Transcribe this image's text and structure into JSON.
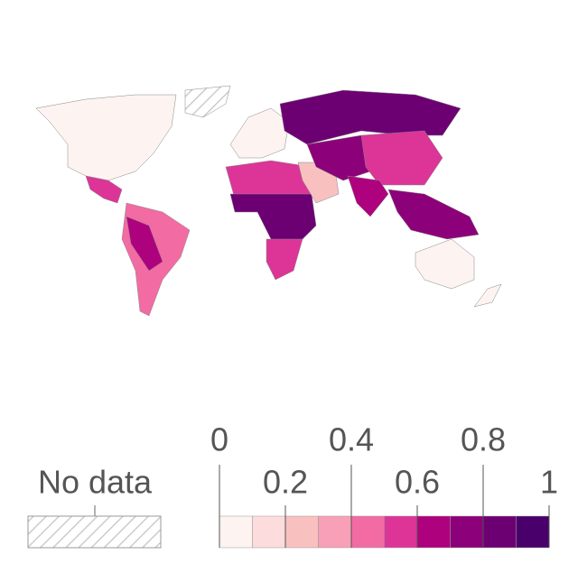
{
  "legend": {
    "no_data_label": "No data",
    "xlim": [
      0,
      1
    ],
    "ticks": [
      0,
      0.2,
      0.4,
      0.6,
      0.8,
      1
    ],
    "bins": [
      0,
      0.1,
      0.2,
      0.3,
      0.4,
      0.5,
      0.6,
      0.7,
      0.8,
      0.9,
      1
    ],
    "colors": [
      "#fdf3f1",
      "#fcdcdc",
      "#f9c0c0",
      "#f7a0b8",
      "#f26ba2",
      "#dd3497",
      "#ae017e",
      "#8c0179",
      "#6c0072",
      "#4a006a"
    ]
  }
}
